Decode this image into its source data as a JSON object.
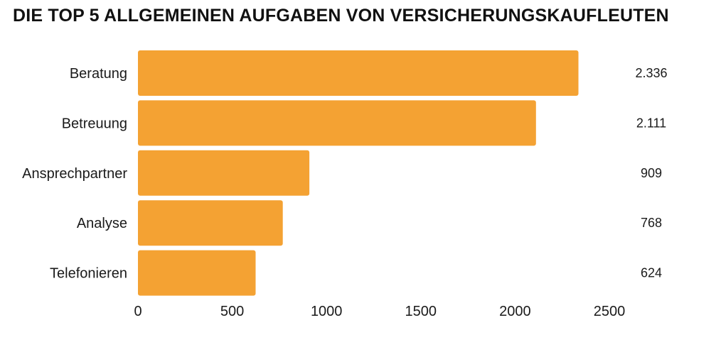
{
  "chart_data": {
    "type": "bar",
    "orientation": "horizontal",
    "title": "DIE TOP 5 ALLGEMEINEN AUFGABEN VON VERSICHERUNGSKAUFLEUTEN",
    "categories": [
      "Beratung",
      "Betreuung",
      "Ansprechpartner",
      "Analyse",
      "Telefonieren"
    ],
    "values": [
      2336,
      2111,
      909,
      768,
      624
    ],
    "value_labels": [
      "2.336",
      "2.111",
      "909",
      "768",
      "624"
    ],
    "xlim": [
      0,
      2500
    ],
    "xticks": [
      0,
      500,
      1000,
      1500,
      2000,
      2500
    ],
    "xtick_labels": [
      "0",
      "500",
      "1000",
      "1500",
      "2000",
      "2500"
    ],
    "grid": false,
    "bar_color": "#F4A233"
  }
}
